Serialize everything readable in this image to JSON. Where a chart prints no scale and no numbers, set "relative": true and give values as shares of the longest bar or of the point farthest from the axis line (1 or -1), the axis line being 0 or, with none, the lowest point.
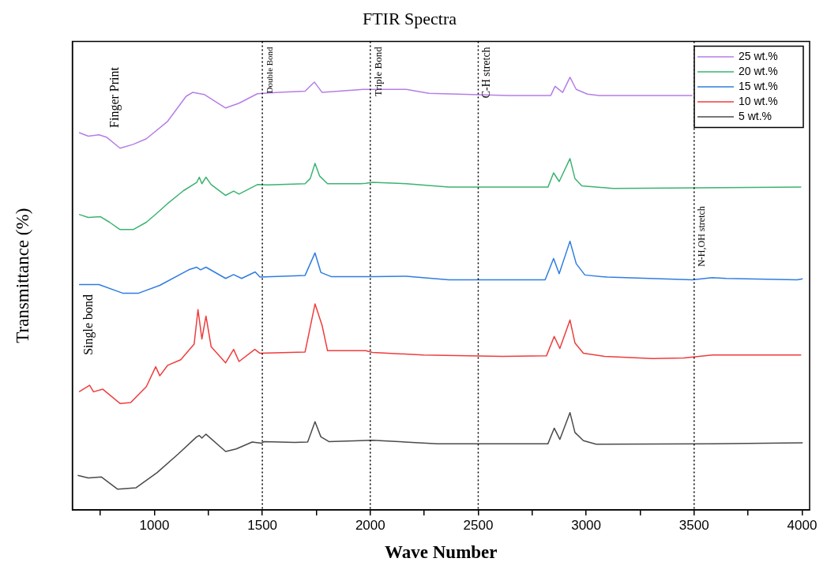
{
  "chart_data": {
    "type": "line",
    "title": "FTIR Spectra",
    "xlabel": "Wave Number",
    "ylabel": "Transmittance (%)",
    "relative": true,
    "marker": "none",
    "line_style": "solid",
    "legend": "top right",
    "xlim": [
      620,
      4035
    ],
    "xticks": [
      {
        "value": 750,
        "label": null
      },
      1000,
      {
        "value": 1250,
        "label": null
      },
      1500,
      {
        "value": 1750,
        "label": null
      },
      2000,
      {
        "value": 2250,
        "label": null
      },
      2500,
      {
        "value": 2750,
        "label": null
      },
      3000,
      {
        "value": 3250,
        "label": null
      },
      3500,
      {
        "value": 3750,
        "label": null
      },
      4000
    ],
    "ref_lines": [
      {
        "axis": "x",
        "value": 1500,
        "label": "Double Bond",
        "color": "#000000",
        "line_style": "dotted"
      },
      {
        "axis": "x",
        "value": 2000,
        "label": "Triple Bond",
        "color": "#000000",
        "line_style": "dotted"
      },
      {
        "axis": "x",
        "value": 2500,
        "label": "C-H stretch",
        "color": "#000000",
        "line_style": "dotted"
      },
      {
        "axis": "x",
        "value": 3500,
        "label": "N-H,OH stretch",
        "color": "#000000",
        "line_style": "dotted"
      }
    ],
    "annotations": [
      "Finger Print",
      "Single bond"
    ],
    "series": [
      {
        "name": "25 wt.%",
        "color": "#b57ee6",
        "x": [
          651,
          694,
          743,
          780,
          841,
          902,
          963,
          1061,
          1147,
          1177,
          1232,
          1330,
          1392,
          1477,
          1575,
          1698,
          1741,
          1777,
          1967,
          2167,
          2272,
          2639,
          2836,
          2856,
          2891,
          2925,
          2954,
          3006,
          3059,
          3492
        ],
        "values": [
          0.872,
          0.864,
          0.867,
          0.861,
          0.836,
          0.845,
          0.858,
          0.898,
          0.956,
          0.965,
          0.96,
          0.929,
          0.94,
          0.962,
          0.965,
          0.968,
          0.989,
          0.965,
          0.972,
          0.972,
          0.963,
          0.958,
          0.958,
          0.979,
          0.965,
          1,
          0.972,
          0.961,
          0.958,
          0.958
        ]
      },
      {
        "name": "20 wt.%",
        "color": "#3cb371",
        "x": [
          651,
          694,
          749,
          792,
          841,
          902,
          963,
          1012,
          1061,
          1135,
          1196,
          1208,
          1220,
          1239,
          1263,
          1330,
          1367,
          1392,
          1477,
          1526,
          1698,
          1722,
          1744,
          1765,
          1802,
          1955,
          1979,
          2010,
          2167,
          2364,
          2823,
          2849,
          2875,
          2925,
          2948,
          2980,
          3125,
          3996
        ],
        "values": [
          0.683,
          0.676,
          0.678,
          0.665,
          0.648,
          0.648,
          0.665,
          0.686,
          0.708,
          0.738,
          0.757,
          0.769,
          0.754,
          0.769,
          0.752,
          0.727,
          0.737,
          0.73,
          0.752,
          0.751,
          0.754,
          0.766,
          0.801,
          0.772,
          0.754,
          0.754,
          0.755,
          0.757,
          0.754,
          0.746,
          0.746,
          0.779,
          0.759,
          0.812,
          0.766,
          0.749,
          0.743,
          0.746
        ]
      },
      {
        "name": "15 wt.%",
        "color": "#2f7de1",
        "x": [
          651,
          743,
          853,
          927,
          1025,
          1159,
          1196,
          1214,
          1239,
          1330,
          1367,
          1404,
          1467,
          1489,
          1698,
          1744,
          1771,
          1820,
          1979,
          2010,
          2167,
          2364,
          2810,
          2849,
          2875,
          2925,
          2954,
          2994,
          3098,
          3492,
          3584,
          3649,
          3977,
          4003
        ],
        "values": [
          0.521,
          0.521,
          0.501,
          0.501,
          0.519,
          0.555,
          0.561,
          0.555,
          0.561,
          0.535,
          0.544,
          0.535,
          0.55,
          0.538,
          0.542,
          0.594,
          0.549,
          0.539,
          0.539,
          0.539,
          0.54,
          0.532,
          0.532,
          0.581,
          0.546,
          0.621,
          0.569,
          0.543,
          0.538,
          0.532,
          0.537,
          0.535,
          0.532,
          0.534
        ]
      },
      {
        "name": "10 wt.%",
        "color": "#f03c3c",
        "x": [
          651,
          700,
          718,
          761,
          841,
          890,
          963,
          1006,
          1025,
          1061,
          1122,
          1184,
          1202,
          1220,
          1239,
          1263,
          1330,
          1367,
          1392,
          1465,
          1489,
          1698,
          1744,
          1777,
          1802,
          1979,
          2010,
          2246,
          2613,
          2816,
          2852,
          2878,
          2925,
          2948,
          2987,
          3085,
          3308,
          3453,
          3584,
          3996
        ],
        "values": [
          0.273,
          0.288,
          0.273,
          0.279,
          0.246,
          0.248,
          0.285,
          0.331,
          0.31,
          0.334,
          0.347,
          0.383,
          0.463,
          0.395,
          0.448,
          0.377,
          0.34,
          0.371,
          0.343,
          0.371,
          0.362,
          0.365,
          0.476,
          0.426,
          0.368,
          0.368,
          0.364,
          0.358,
          0.355,
          0.356,
          0.401,
          0.373,
          0.439,
          0.386,
          0.362,
          0.355,
          0.35,
          0.351,
          0.358,
          0.358
        ]
      },
      {
        "name": "5 wt.%",
        "color": "#4a4a4a",
        "x": [
          645,
          694,
          755,
          829,
          914,
          1012,
          1110,
          1196,
          1208,
          1220,
          1239,
          1330,
          1379,
          1453,
          1496,
          1508,
          1649,
          1710,
          1744,
          1771,
          1808,
          1955,
          2010,
          2311,
          2823,
          2852,
          2878,
          2925,
          2948,
          2987,
          3046,
          3584,
          4003
        ],
        "values": [
          0.08,
          0.074,
          0.076,
          0.048,
          0.051,
          0.086,
          0.129,
          0.169,
          0.172,
          0.166,
          0.175,
          0.135,
          0.141,
          0.157,
          0.154,
          0.158,
          0.156,
          0.157,
          0.204,
          0.169,
          0.158,
          0.16,
          0.161,
          0.153,
          0.153,
          0.189,
          0.163,
          0.225,
          0.179,
          0.16,
          0.152,
          0.153,
          0.155
        ]
      }
    ]
  }
}
